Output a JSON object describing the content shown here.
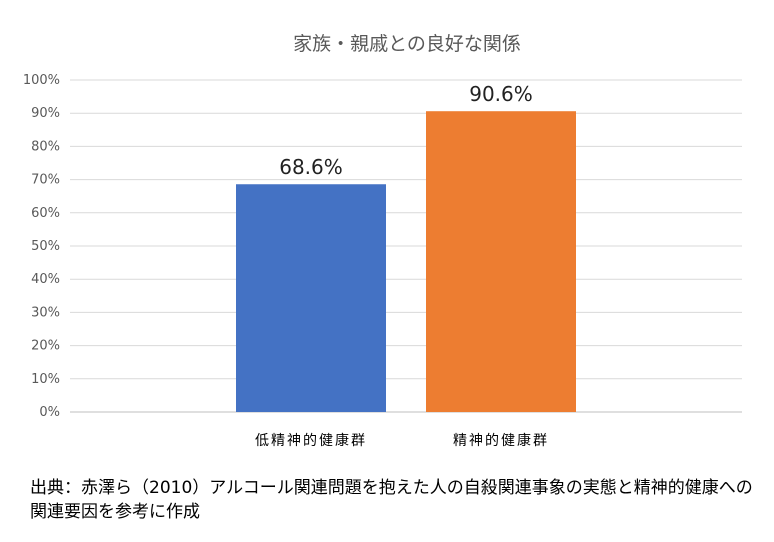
{
  "chart_data": {
    "type": "bar",
    "title": "家族・親戚との良好な関係",
    "categories": [
      "低精神的健康群",
      "精神的健康群"
    ],
    "values": [
      68.6,
      90.6
    ],
    "value_labels": [
      "68.6%",
      "90.6%"
    ],
    "ylim": [
      0,
      100
    ],
    "yticks": [
      0,
      10,
      20,
      30,
      40,
      50,
      60,
      70,
      80,
      90,
      100
    ],
    "ytick_labels": [
      "0%",
      "10%",
      "20%",
      "30%",
      "40%",
      "50%",
      "60%",
      "70%",
      "80%",
      "90%",
      "100%"
    ],
    "colors": [
      "#4472C4",
      "#ED7D31"
    ],
    "grid": true,
    "legend": "none"
  },
  "source_note": "出典：赤澤ら（2010）アルコール関連問題を抱えた人の自殺関連事象の実態と精神的健康への関連要因を参考に作成"
}
